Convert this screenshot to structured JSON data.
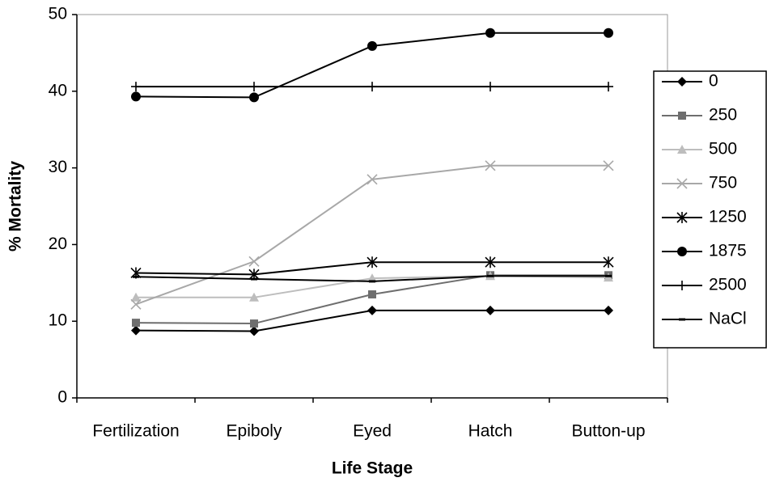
{
  "chart_data": {
    "type": "line",
    "x_label": "Life Stage",
    "y_label": "% Mortality",
    "categories": [
      "Fertilization",
      "Epiboly",
      "Eyed",
      "Hatch",
      "Button-up"
    ],
    "ylim": [
      0,
      50
    ],
    "yticks": [
      0,
      10,
      20,
      30,
      40,
      50
    ],
    "legend": "right",
    "series": [
      {
        "name": "0",
        "color": "#000000",
        "marker": "diamond",
        "values": [
          8.8,
          8.7,
          11.4,
          11.4,
          11.4
        ]
      },
      {
        "name": "250",
        "color": "#6e6e6e",
        "marker": "square",
        "values": [
          9.8,
          9.7,
          13.5,
          16.0,
          16.0
        ]
      },
      {
        "name": "500",
        "color": "#bdbdbd",
        "marker": "triangle",
        "values": [
          13.1,
          13.1,
          15.6,
          15.9,
          15.7
        ]
      },
      {
        "name": "750",
        "color": "#a8a8a8",
        "marker": "x",
        "values": [
          12.2,
          17.8,
          28.5,
          30.3,
          30.3
        ]
      },
      {
        "name": "1250",
        "color": "#000000",
        "marker": "asterisk",
        "values": [
          16.3,
          16.1,
          17.7,
          17.7,
          17.7
        ]
      },
      {
        "name": "1875",
        "color": "#000000",
        "marker": "circle",
        "values": [
          39.3,
          39.2,
          45.9,
          47.6,
          47.6
        ]
      },
      {
        "name": "2500",
        "color": "#000000",
        "marker": "plus",
        "values": [
          40.6,
          40.6,
          40.6,
          40.6,
          40.6
        ]
      },
      {
        "name": "NaCl",
        "color": "#000000",
        "marker": "dash",
        "values": [
          15.8,
          15.5,
          15.2,
          15.9,
          15.9
        ]
      }
    ]
  }
}
